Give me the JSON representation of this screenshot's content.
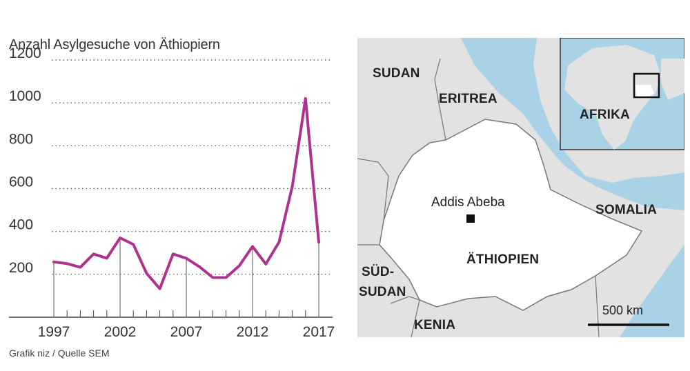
{
  "chart_data": {
    "type": "line",
    "title": "Anzahl Asylgesuche von Äthiopiern",
    "xlabel": "",
    "ylabel": "",
    "ylim": [
      0,
      1200
    ],
    "xlim": [
      1997,
      2017
    ],
    "yticks": [
      200,
      400,
      600,
      800,
      1000,
      1200
    ],
    "xticks": [
      1997,
      2002,
      2007,
      2012,
      2017
    ],
    "series": [
      {
        "name": "",
        "color": "#b0328f",
        "x": [
          1997,
          1998,
          1999,
          2000,
          2001,
          2002,
          2003,
          2004,
          2005,
          2006,
          2007,
          2008,
          2009,
          2010,
          2011,
          2012,
          2013,
          2014,
          2015,
          2016,
          2017
        ],
        "values": [
          258,
          250,
          233,
          295,
          275,
          370,
          340,
          205,
          133,
          295,
          275,
          235,
          185,
          185,
          240,
          330,
          248,
          350,
          610,
          1020,
          350
        ]
      }
    ],
    "grid": "dotted horizontal",
    "source": "Grafik niz / Quelle SEM"
  },
  "map": {
    "labels": {
      "sudan": "SUDAN",
      "eritrea": "ERITREA",
      "afrika": "AFRIKA",
      "somalia": "SOMALIA",
      "aethiopien": "ÄTHIOPIEN",
      "suedsudan_1": "SÜD-",
      "suedsudan_2": "SUDAN",
      "kenia": "KENIA"
    },
    "capital": "Addis Abeba",
    "scale": "500 km",
    "colors": {
      "sea": "#a9d2e6",
      "land": "#e2e2e2",
      "ethiopia": "#ffffff",
      "border": "#777777"
    }
  }
}
